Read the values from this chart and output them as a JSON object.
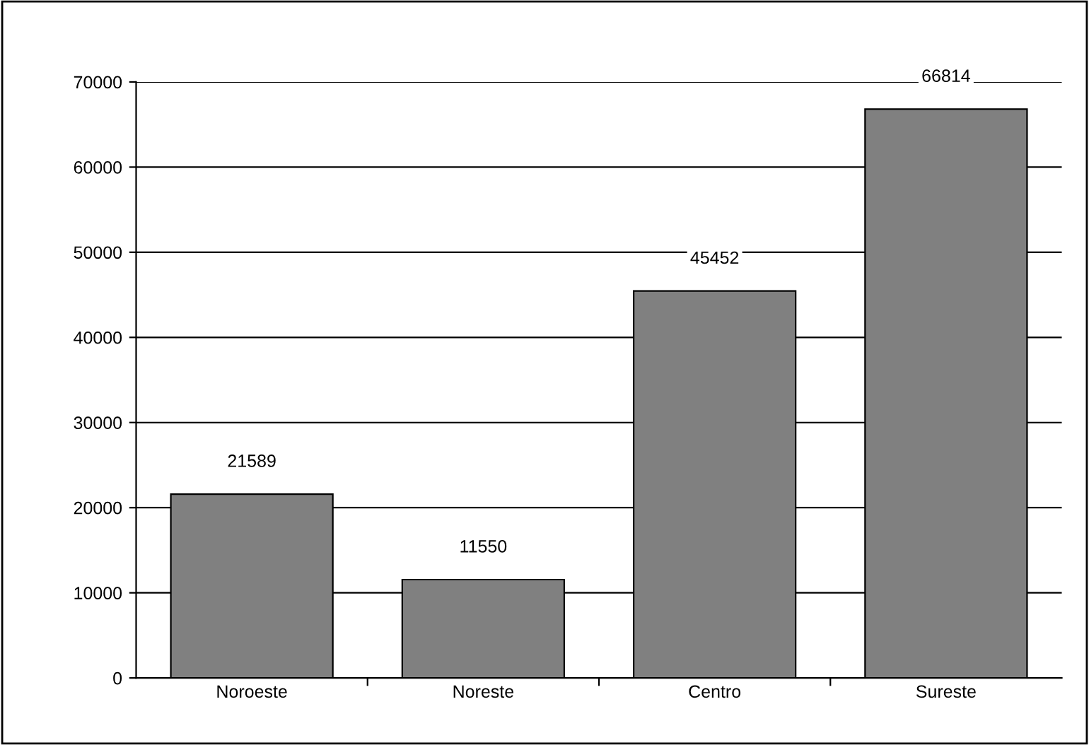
{
  "chart_data": {
    "type": "bar",
    "categories": [
      "Noroeste",
      "Noreste",
      "Centro",
      "Sureste"
    ],
    "values": [
      21589,
      11550,
      45452,
      66814
    ],
    "color": "#808080",
    "ylim": [
      0,
      70000
    ],
    "yticks": [
      0,
      10000,
      20000,
      30000,
      40000,
      50000,
      60000,
      70000
    ],
    "grid": "y",
    "data_labels": true
  }
}
